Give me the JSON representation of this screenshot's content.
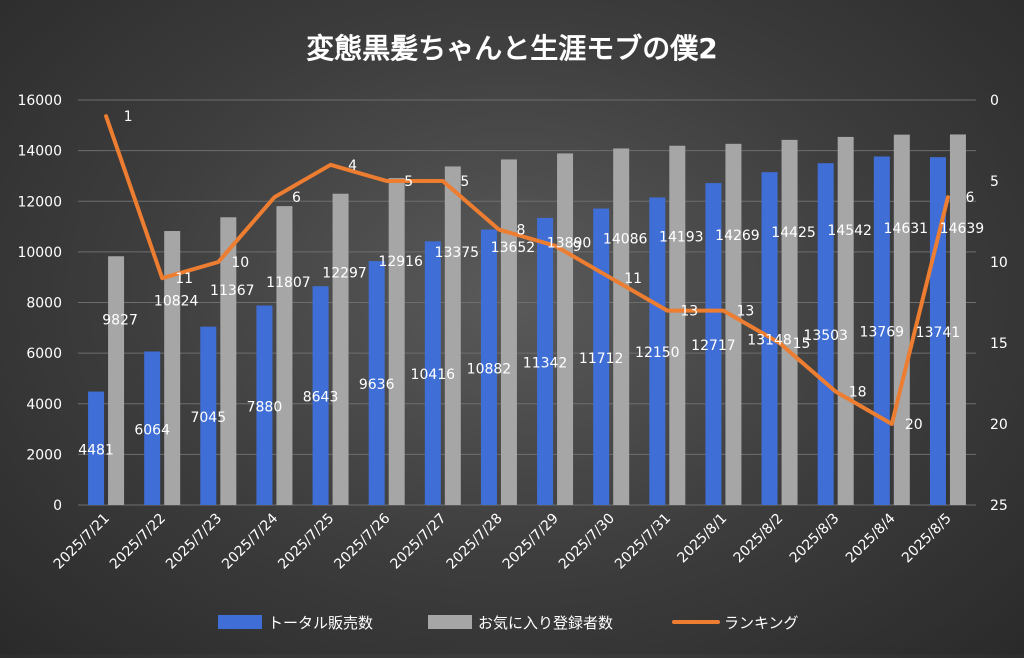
{
  "chart_data": {
    "type": "bar",
    "title": "変態黒髪ちゃんと生涯モブの僕2",
    "categories": [
      "2025/7/21",
      "2025/7/22",
      "2025/7/23",
      "2025/7/24",
      "2025/7/25",
      "2025/7/26",
      "2025/7/27",
      "2025/7/28",
      "2025/7/29",
      "2025/7/30",
      "2025/7/31",
      "2025/8/1",
      "2025/8/2",
      "2025/8/3",
      "2025/8/4",
      "2025/8/5"
    ],
    "series": [
      {
        "name": "トータル販売数",
        "kind": "bar",
        "axis": "left",
        "color": "#3f6fd6",
        "values": [
          4481,
          6064,
          7045,
          7880,
          8643,
          9636,
          10416,
          10882,
          11342,
          11712,
          12150,
          12717,
          13148,
          13503,
          13769,
          13741
        ]
      },
      {
        "name": "お気に入り登録者数",
        "kind": "bar",
        "axis": "left",
        "color": "#a6a6a6",
        "values": [
          9827,
          10824,
          11367,
          11807,
          12297,
          12916,
          13375,
          13652,
          13890,
          14086,
          14193,
          14269,
          14425,
          14542,
          14631,
          14639
        ]
      },
      {
        "name": "ランキング",
        "kind": "line",
        "axis": "right",
        "color": "#ed7d31",
        "values": [
          1,
          11,
          10,
          6,
          4,
          5,
          5,
          8,
          9,
          11,
          13,
          13,
          15,
          18,
          20,
          6
        ]
      }
    ],
    "y_left": {
      "min": 0,
      "max": 16000,
      "ticks": [
        0,
        2000,
        4000,
        6000,
        8000,
        10000,
        12000,
        14000,
        16000
      ]
    },
    "y_right": {
      "min": 0,
      "max": 25,
      "reversed": true,
      "ticks": [
        0,
        5,
        10,
        15,
        20,
        25
      ]
    },
    "grid": true,
    "legend_position": "bottom"
  }
}
